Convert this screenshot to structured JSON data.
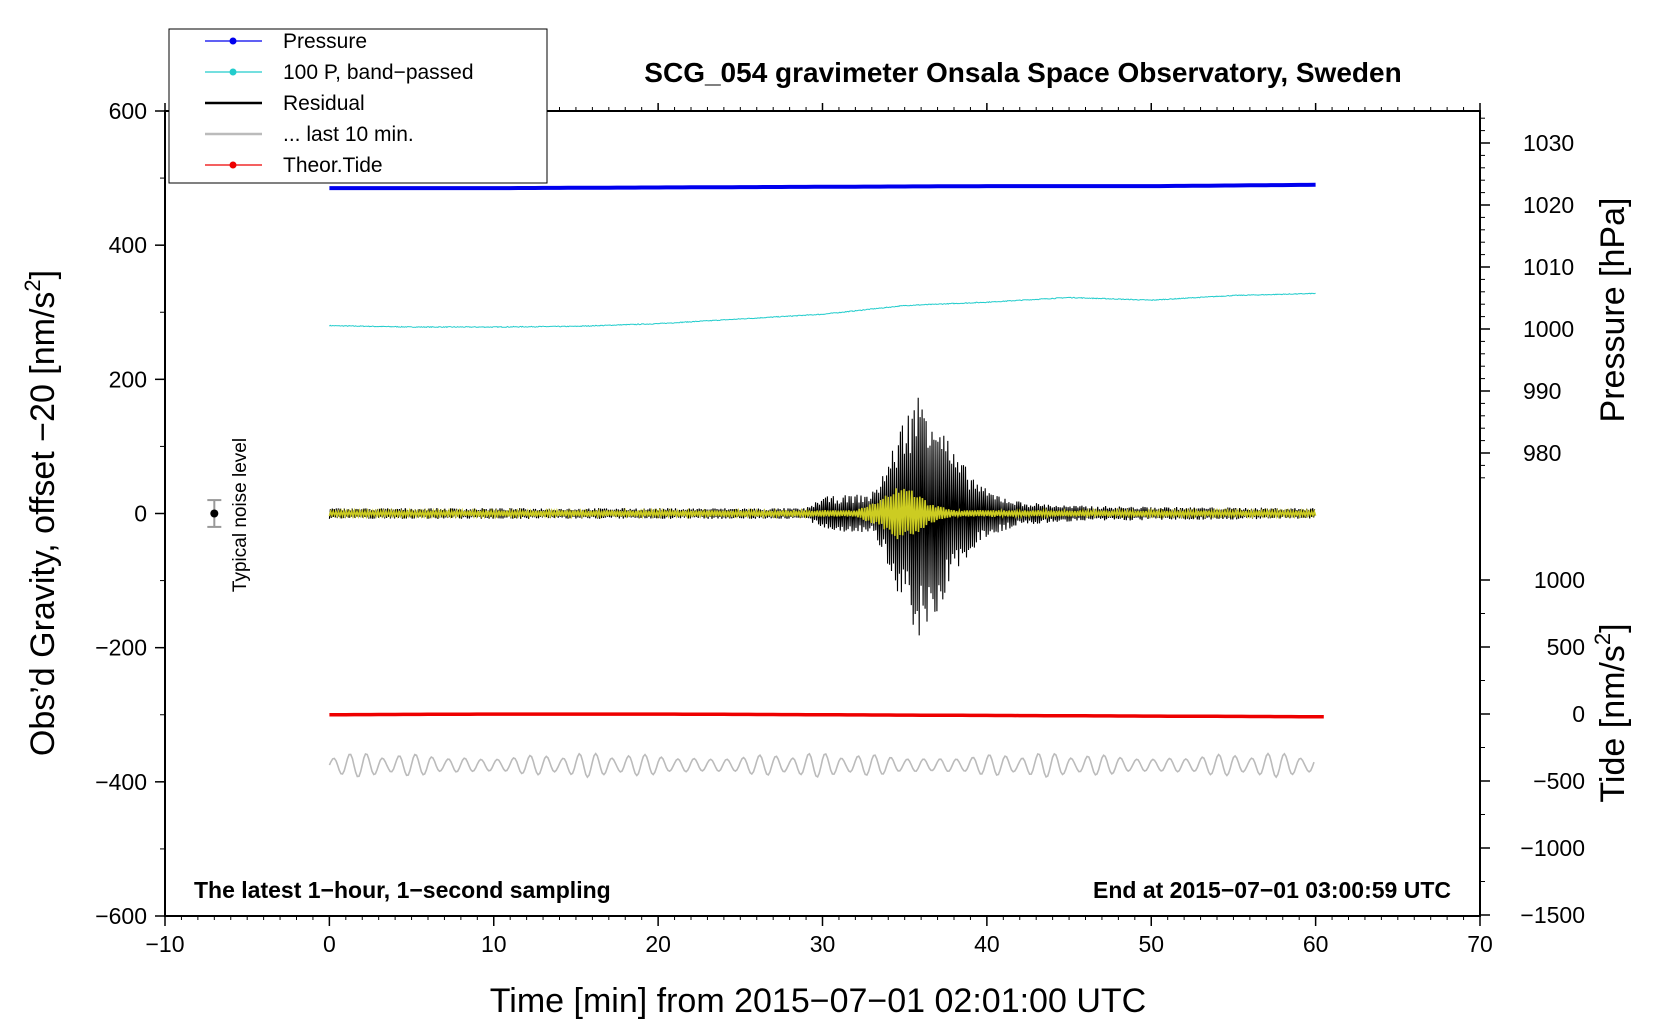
{
  "chart_data": {
    "type": "line",
    "title": "SCG_054 gravimeter Onsala Space Observatory, Sweden",
    "xlabel": "Time [min] from 2015−07−01 02:01:00 UTC",
    "ylabel": "Obs’d Gravity, offset −20 [nm/s",
    "ylabel_sup": "2",
    "ylabel_end": "]",
    "right_axis_pressure_label": "Pressure [hPa]",
    "right_axis_tide_label": "Tide [nm/s",
    "right_axis_tide_sup": "2",
    "right_axis_tide_end": "]",
    "xlim": [
      -10,
      70
    ],
    "ylim": [
      -600,
      600
    ],
    "x_ticks": [
      -10,
      0,
      10,
      20,
      30,
      40,
      50,
      60,
      70
    ],
    "x_tick_labels": [
      "−10",
      "0",
      "10",
      "20",
      "30",
      "40",
      "50",
      "60",
      "70"
    ],
    "y_ticks": [
      -600,
      -400,
      -200,
      0,
      200,
      400,
      600
    ],
    "y_tick_labels": [
      "−600",
      "−400",
      "−200",
      "0",
      "200",
      "400",
      "600"
    ],
    "pressure_axis": {
      "ticks": [
        980,
        990,
        1000,
        1010,
        1020,
        1030
      ],
      "tick_labels": [
        "980",
        "990",
        "1000",
        "1010",
        "1020",
        "1030"
      ]
    },
    "tide_axis": {
      "ticks": [
        -1500,
        -1000,
        -500,
        0,
        500,
        1000
      ],
      "tick_labels": [
        "−1500",
        "−1000",
        "−500",
        "0",
        "500",
        "1000"
      ]
    },
    "legend": [
      {
        "label": "Pressure",
        "color": "#0000ee",
        "marker": true
      },
      {
        "label": "100 P, band−passed",
        "color": "#22cccc",
        "marker": true
      },
      {
        "label": "Residual",
        "color": "#000000",
        "marker": false
      },
      {
        "label": "... last 10 min.",
        "color": "#bbbbbb",
        "marker": false
      },
      {
        "label": "Theor.Tide",
        "color": "#ee0000",
        "marker": true
      }
    ],
    "series": [
      {
        "name": "Pressure",
        "color": "#0000ee",
        "x": [
          0,
          10,
          20,
          30,
          40,
          50,
          60
        ],
        "y": [
          485,
          485,
          486,
          487,
          488,
          488,
          490
        ]
      },
      {
        "name": "100 P, band−passed",
        "color": "#22cccc",
        "x": [
          0,
          5,
          10,
          15,
          20,
          25,
          30,
          35,
          40,
          45,
          50,
          55,
          60
        ],
        "y": [
          280,
          278,
          278,
          279,
          283,
          290,
          297,
          310,
          315,
          322,
          318,
          325,
          328
        ]
      },
      {
        "name": "Residual",
        "color": "#000000",
        "x": [
          0,
          29,
          30,
          33,
          34,
          35,
          36,
          37,
          38,
          40,
          42,
          45,
          50,
          55,
          60
        ],
        "amplitude": [
          8,
          8,
          25,
          30,
          80,
          150,
          190,
          160,
          90,
          35,
          18,
          12,
          10,
          9,
          8
        ]
      },
      {
        "name": "Band-passed residual",
        "color": "#cccc22",
        "x": [
          0,
          32,
          33.5,
          34.5,
          35.5,
          36.5,
          38,
          60
        ],
        "amplitude": [
          4,
          5,
          20,
          40,
          35,
          15,
          5,
          4
        ]
      },
      {
        "name": "... last 10 min.",
        "color": "#bbbbbb",
        "x": [
          0,
          60
        ],
        "y_mean": -375,
        "amplitude": 18
      },
      {
        "name": "Theor.Tide",
        "color": "#ee0000",
        "x": [
          0,
          10,
          20,
          30,
          40,
          50,
          60.5
        ],
        "y": [
          -300,
          -299,
          -299,
          -300,
          -301,
          -302,
          -303
        ]
      }
    ],
    "noise_bar": {
      "x": -7,
      "y": 0,
      "err": 20,
      "label": "Typical noise level"
    },
    "corner_left": "The latest 1−hour, 1−second sampling",
    "corner_right": "End at 2015−07−01 03:00:59 UTC"
  }
}
